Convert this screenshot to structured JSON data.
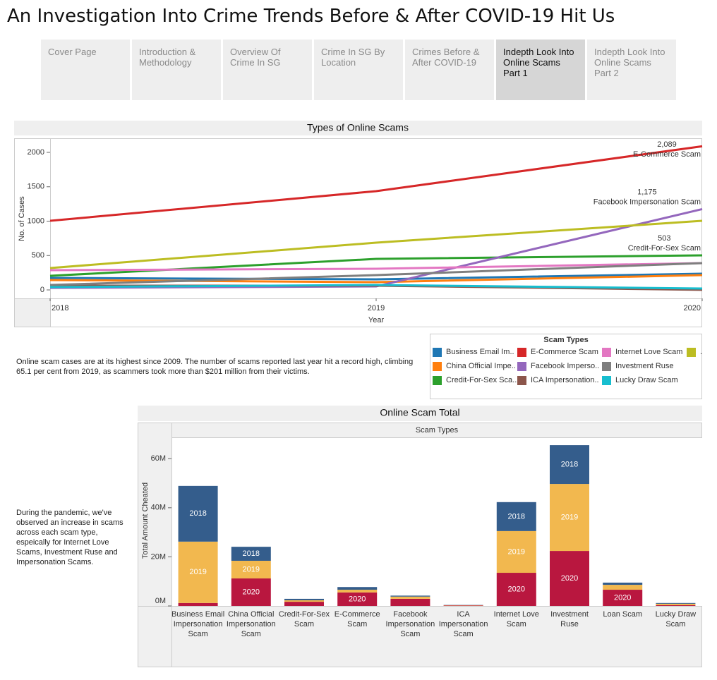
{
  "header": {
    "title": "An Investigation Into Crime Trends Before & After COVID-19 Hit Us"
  },
  "tabs": {
    "labels": [
      "Cover Page",
      "Introduction & Methodology",
      "Overview Of Crime In SG",
      "Crime In SG By Location",
      "Crimes Before & After COVID-19",
      "Indepth Look Into Online Scams Part 1",
      "Indepth Look Into Online Scams Part 2"
    ],
    "active": 5
  },
  "notes": [
    "Online scam cases are at its highest since 2009. The number of scams reported last year hit a record high, climbing 65.1 per cent from 2019, as scammers took more than $201 million from their victims.",
    "During the pandemic, we've observed an increase in scams across each scam type, espeically for Internet Love Scams, Investment Ruse and Impersonation Scams."
  ],
  "chart_data": [
    {
      "type": "line",
      "title": "Types of Online Scams",
      "x_label": "Year",
      "y_label": "No. of Cases",
      "x": [
        2018,
        2019,
        2020
      ],
      "xlim": [
        2018,
        2020
      ],
      "xticks": [
        2018,
        2019,
        2020
      ],
      "ylim": [
        -123,
        2195
      ],
      "yticks": [
        0,
        500,
        1000,
        1500,
        2000
      ],
      "legend_title": "Scam Types",
      "series": [
        {
          "name": "Business Email Im..",
          "color": "#1f77b4",
          "values": [
            174,
            154,
            236
          ]
        },
        {
          "name": "China Official Impe..",
          "color": "#ff7f0e",
          "values": [
            144,
            113,
            215
          ]
        },
        {
          "name": "Credit-For-Sex Sca..",
          "color": "#2ca02c",
          "values": [
            205,
            451,
            503
          ],
          "value_labels": [
            null,
            null,
            "503"
          ],
          "end_label": "Credit-For-Sex Scam"
        },
        {
          "name": "E-Commerce Scam",
          "color": "#d62728",
          "values": [
            1005,
            1436,
            2089
          ],
          "value_labels": [
            null,
            null,
            "2,089"
          ],
          "end_label": "E-Commerce Scam"
        },
        {
          "name": "Facebook Imperso..",
          "color": "#9467bd",
          "values": [
            30,
            51,
            1175
          ],
          "value_labels": [
            null,
            null,
            "1,175"
          ],
          "end_label": "Facebook Impersonation Scam"
        },
        {
          "name": "ICA Impersonation..",
          "color": "#8c564b",
          "values": [
            62,
            62,
            2
          ]
        },
        {
          "name": "Internet Love Scam",
          "color": "#e377c2",
          "values": [
            287,
            308,
            390
          ]
        },
        {
          "name": "Investment Ruse",
          "color": "#7f7f7f",
          "values": [
            72,
            215,
            390
          ]
        },
        {
          "name": "Lucky Draw Scam",
          "color": "#17becf",
          "values": [
            41,
            72,
            20
          ]
        },
        {
          "name": ".",
          "color": "#bcbd22",
          "values": [
            318,
            687,
            1005
          ]
        }
      ]
    },
    {
      "type": "bar",
      "stacked": true,
      "title": "Online Scam Total",
      "column_header": "Scam Types",
      "y_label": "Total Amount Cheated",
      "categories": [
        "Business Email Impersonation Scam",
        "China Official Impersonation Scam",
        "Credit-For-Sex Scam",
        "E-Commerce Scam",
        "Facebook Impersonation Scam",
        "ICA Impersonation Scam",
        "Internet Love Scam",
        "Investment Ruse",
        "Loan Scam",
        "Lucky Draw Scam"
      ],
      "ylim": [
        0,
        68400000
      ],
      "yticks": [
        {
          "value": 0,
          "label": "0M"
        },
        {
          "value": 20000000,
          "label": "20M"
        },
        {
          "value": 40000000,
          "label": "40M"
        },
        {
          "value": 60000000,
          "label": "60M"
        }
      ],
      "series": [
        {
          "name": "2020",
          "color": "#b9173f",
          "values": [
            1200000,
            11200000,
            1700000,
            5500000,
            2900000,
            200000,
            13500000,
            22400000,
            6600000,
            300000
          ]
        },
        {
          "name": "2019",
          "color": "#f2b84f",
          "values": [
            25000000,
            7200000,
            600000,
            1100000,
            900000,
            100000,
            17000000,
            27300000,
            2000000,
            600000
          ]
        },
        {
          "name": "2018",
          "color": "#345d8c",
          "values": [
            22700000,
            5700000,
            600000,
            1100000,
            400000,
            100000,
            11800000,
            15800000,
            900000,
            300000
          ]
        }
      ]
    }
  ]
}
